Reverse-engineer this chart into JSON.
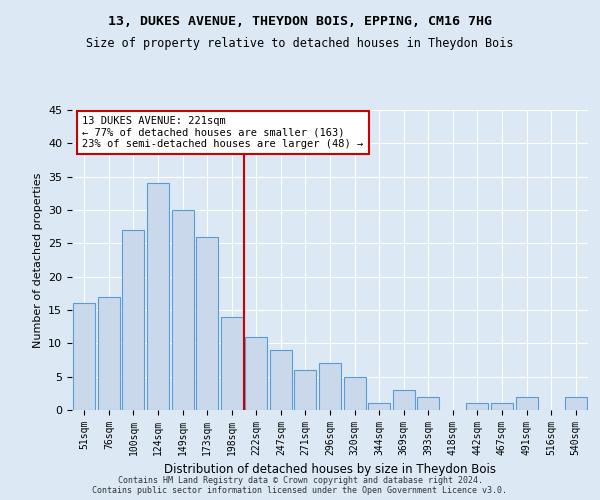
{
  "title1": "13, DUKES AVENUE, THEYDON BOIS, EPPING, CM16 7HG",
  "title2": "Size of property relative to detached houses in Theydon Bois",
  "xlabel": "Distribution of detached houses by size in Theydon Bois",
  "ylabel": "Number of detached properties",
  "categories": [
    "51sqm",
    "76sqm",
    "100sqm",
    "124sqm",
    "149sqm",
    "173sqm",
    "198sqm",
    "222sqm",
    "247sqm",
    "271sqm",
    "296sqm",
    "320sqm",
    "344sqm",
    "369sqm",
    "393sqm",
    "418sqm",
    "442sqm",
    "467sqm",
    "491sqm",
    "516sqm",
    "540sqm"
  ],
  "values": [
    16,
    17,
    27,
    34,
    30,
    26,
    14,
    11,
    9,
    6,
    7,
    5,
    1,
    3,
    2,
    0,
    1,
    1,
    2,
    0,
    2
  ],
  "bar_color": "#c9d9eb",
  "bar_edgecolor": "#5b9bd5",
  "vline_color": "#cc0000",
  "annotation_text": "13 DUKES AVENUE: 221sqm\n← 77% of detached houses are smaller (163)\n23% of semi-detached houses are larger (48) →",
  "annotation_box_edgecolor": "#cc0000",
  "background_color": "#dce9f5",
  "plot_bg_color": "#dce9f5",
  "grid_color": "#ffffff",
  "footer1": "Contains HM Land Registry data © Crown copyright and database right 2024.",
  "footer2": "Contains public sector information licensed under the Open Government Licence v3.0.",
  "ylim": [
    0,
    45
  ],
  "yticks": [
    0,
    5,
    10,
    15,
    20,
    25,
    30,
    35,
    40,
    45
  ],
  "vline_bar_index": 7
}
